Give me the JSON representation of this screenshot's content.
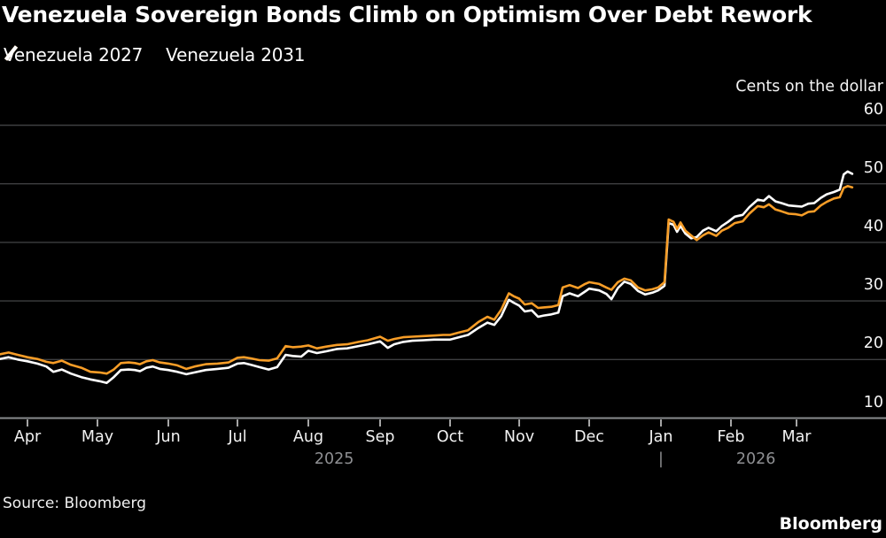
{
  "header": {
    "title": "Venezuela Sovereign Bonds Climb on Optimism Over Debt Rework"
  },
  "legend": {
    "items": [
      {
        "label": "Venezuela 2027",
        "color": "#f79d27"
      },
      {
        "label": "Venezuela 2031",
        "color": "#ffffff"
      }
    ]
  },
  "footer": {
    "source": "Source: Bloomberg",
    "logo": "Bloomberg"
  },
  "chart_data": {
    "type": "line",
    "title": "Venezuela Sovereign Bonds Climb on Optimism Over Debt Rework",
    "y_label": "Cents on the dollar",
    "y_ticks": [
      60,
      50,
      40,
      30,
      20,
      10
    ],
    "ylim": [
      10,
      60
    ],
    "grid": "horizontal",
    "legend_position": "top-left",
    "x_unit": "t = months after the Apr 2025 tick (Apr 2025 through Mar 2026)",
    "x_tick_labels": [
      "Apr",
      "May",
      "Jun",
      "Jul",
      "Aug",
      "Sep",
      "Oct",
      "Nov",
      "Dec",
      "Jan",
      "Feb",
      "Mar"
    ],
    "x_years": [
      {
        "label": "2025",
        "t": 4.36
      },
      {
        "label": "|",
        "t": 9.0
      },
      {
        "label": "2026",
        "t": 10.38
      }
    ],
    "series": [
      {
        "name": "Venezuela 2031",
        "color": "#ffffff",
        "points": [
          [
            -0.39,
            20.1
          ],
          [
            -0.27,
            20.4
          ],
          [
            -0.14,
            20.0
          ],
          [
            0,
            19.7
          ],
          [
            0.14,
            19.3
          ],
          [
            0.27,
            18.8
          ],
          [
            0.37,
            17.9
          ],
          [
            0.49,
            18.3
          ],
          [
            0.62,
            17.6
          ],
          [
            0.77,
            17.0
          ],
          [
            0.9,
            16.6
          ],
          [
            1.03,
            16.3
          ],
          [
            1.13,
            16.0
          ],
          [
            1.23,
            17.0
          ],
          [
            1.33,
            18.2
          ],
          [
            1.44,
            18.3
          ],
          [
            1.53,
            18.2
          ],
          [
            1.6,
            18.0
          ],
          [
            1.69,
            18.6
          ],
          [
            1.78,
            18.8
          ],
          [
            1.88,
            18.4
          ],
          [
            2,
            18.2
          ],
          [
            2.13,
            17.9
          ],
          [
            2.26,
            17.5
          ],
          [
            2.38,
            17.8
          ],
          [
            2.54,
            18.2
          ],
          [
            2.71,
            18.4
          ],
          [
            2.87,
            18.6
          ],
          [
            3,
            19.3
          ],
          [
            3.09,
            19.4
          ],
          [
            3.19,
            19.1
          ],
          [
            3.31,
            18.7
          ],
          [
            3.44,
            18.3
          ],
          [
            3.56,
            18.7
          ],
          [
            3.68,
            20.8
          ],
          [
            3.78,
            20.6
          ],
          [
            3.9,
            20.5
          ],
          [
            4,
            21.5
          ],
          [
            4.12,
            21.1
          ],
          [
            4.25,
            21.4
          ],
          [
            4.4,
            21.8
          ],
          [
            4.54,
            21.9
          ],
          [
            4.7,
            22.3
          ],
          [
            4.83,
            22.6
          ],
          [
            5,
            23.1
          ],
          [
            5.11,
            22.0
          ],
          [
            5.2,
            22.6
          ],
          [
            5.33,
            23.0
          ],
          [
            5.46,
            23.2
          ],
          [
            5.62,
            23.3
          ],
          [
            5.77,
            23.4
          ],
          [
            5.9,
            23.4
          ],
          [
            6,
            23.4
          ],
          [
            6.13,
            23.8
          ],
          [
            6.26,
            24.2
          ],
          [
            6.41,
            25.4
          ],
          [
            6.54,
            26.3
          ],
          [
            6.64,
            25.9
          ],
          [
            6.74,
            27.4
          ],
          [
            6.85,
            30.2
          ],
          [
            6.92,
            29.7
          ],
          [
            7,
            29.2
          ],
          [
            7.08,
            28.2
          ],
          [
            7.18,
            28.4
          ],
          [
            7.27,
            27.3
          ],
          [
            7.35,
            27.5
          ],
          [
            7.46,
            27.7
          ],
          [
            7.56,
            28.0
          ],
          [
            7.62,
            30.8
          ],
          [
            7.72,
            31.3
          ],
          [
            7.84,
            30.8
          ],
          [
            7.94,
            31.6
          ],
          [
            8,
            32.1
          ],
          [
            8.14,
            31.8
          ],
          [
            8.24,
            31.2
          ],
          [
            8.31,
            30.3
          ],
          [
            8.4,
            32.2
          ],
          [
            8.49,
            33.3
          ],
          [
            8.58,
            32.9
          ],
          [
            8.68,
            31.7
          ],
          [
            8.78,
            31.1
          ],
          [
            8.88,
            31.4
          ],
          [
            8.96,
            31.8
          ],
          [
            9.03,
            32.4
          ],
          [
            9.05,
            32.6
          ],
          [
            9.11,
            43.3
          ],
          [
            9.18,
            43.0
          ],
          [
            9.23,
            41.8
          ],
          [
            9.28,
            42.8
          ],
          [
            9.35,
            41.5
          ],
          [
            9.43,
            40.7
          ],
          [
            9.51,
            40.9
          ],
          [
            9.6,
            42.0
          ],
          [
            9.68,
            42.5
          ],
          [
            9.79,
            41.9
          ],
          [
            9.87,
            42.8
          ],
          [
            9.96,
            43.5
          ],
          [
            10.06,
            44.4
          ],
          [
            10.18,
            44.7
          ],
          [
            10.28,
            46.0
          ],
          [
            10.41,
            47.3
          ],
          [
            10.5,
            47.1
          ],
          [
            10.58,
            47.9
          ],
          [
            10.68,
            47.0
          ],
          [
            10.77,
            46.7
          ],
          [
            10.88,
            46.3
          ],
          [
            10.99,
            46.2
          ],
          [
            11.08,
            46.1
          ],
          [
            11.18,
            46.6
          ],
          [
            11.27,
            46.7
          ],
          [
            11.37,
            47.6
          ],
          [
            11.46,
            48.2
          ],
          [
            11.57,
            48.6
          ],
          [
            11.66,
            49.0
          ],
          [
            11.72,
            51.6
          ],
          [
            11.78,
            52.1
          ],
          [
            11.85,
            51.7
          ]
        ]
      },
      {
        "name": "Venezuela 2027",
        "color": "#f79d27",
        "points": [
          [
            -0.39,
            20.9
          ],
          [
            -0.27,
            21.2
          ],
          [
            -0.14,
            20.8
          ],
          [
            0,
            20.4
          ],
          [
            0.14,
            20.1
          ],
          [
            0.27,
            19.6
          ],
          [
            0.37,
            19.4
          ],
          [
            0.49,
            19.8
          ],
          [
            0.62,
            19.1
          ],
          [
            0.77,
            18.6
          ],
          [
            0.9,
            17.9
          ],
          [
            1.03,
            17.8
          ],
          [
            1.13,
            17.6
          ],
          [
            1.23,
            18.3
          ],
          [
            1.33,
            19.4
          ],
          [
            1.44,
            19.5
          ],
          [
            1.53,
            19.4
          ],
          [
            1.6,
            19.2
          ],
          [
            1.69,
            19.7
          ],
          [
            1.78,
            19.9
          ],
          [
            1.88,
            19.5
          ],
          [
            2,
            19.3
          ],
          [
            2.13,
            19.0
          ],
          [
            2.26,
            18.4
          ],
          [
            2.38,
            18.8
          ],
          [
            2.54,
            19.2
          ],
          [
            2.71,
            19.3
          ],
          [
            2.87,
            19.5
          ],
          [
            3,
            20.3
          ],
          [
            3.09,
            20.4
          ],
          [
            3.19,
            20.2
          ],
          [
            3.31,
            19.9
          ],
          [
            3.44,
            19.8
          ],
          [
            3.56,
            20.2
          ],
          [
            3.68,
            22.3
          ],
          [
            3.78,
            22.1
          ],
          [
            3.9,
            22.2
          ],
          [
            4,
            22.4
          ],
          [
            4.12,
            21.9
          ],
          [
            4.25,
            22.2
          ],
          [
            4.4,
            22.5
          ],
          [
            4.54,
            22.6
          ],
          [
            4.7,
            23.0
          ],
          [
            4.83,
            23.3
          ],
          [
            5,
            23.9
          ],
          [
            5.11,
            23.2
          ],
          [
            5.2,
            23.5
          ],
          [
            5.33,
            23.8
          ],
          [
            5.46,
            23.9
          ],
          [
            5.62,
            24.0
          ],
          [
            5.77,
            24.1
          ],
          [
            5.9,
            24.2
          ],
          [
            6,
            24.2
          ],
          [
            6.13,
            24.6
          ],
          [
            6.26,
            25.0
          ],
          [
            6.41,
            26.4
          ],
          [
            6.54,
            27.3
          ],
          [
            6.64,
            26.8
          ],
          [
            6.74,
            28.5
          ],
          [
            6.85,
            31.3
          ],
          [
            6.92,
            30.8
          ],
          [
            7,
            30.4
          ],
          [
            7.08,
            29.4
          ],
          [
            7.18,
            29.6
          ],
          [
            7.27,
            28.8
          ],
          [
            7.35,
            28.9
          ],
          [
            7.46,
            29.0
          ],
          [
            7.56,
            29.3
          ],
          [
            7.62,
            32.3
          ],
          [
            7.72,
            32.7
          ],
          [
            7.84,
            32.2
          ],
          [
            7.94,
            32.9
          ],
          [
            8,
            33.2
          ],
          [
            8.14,
            32.9
          ],
          [
            8.24,
            32.3
          ],
          [
            8.31,
            31.9
          ],
          [
            8.4,
            33.2
          ],
          [
            8.49,
            33.8
          ],
          [
            8.58,
            33.5
          ],
          [
            8.68,
            32.3
          ],
          [
            8.78,
            31.8
          ],
          [
            8.88,
            32.0
          ],
          [
            8.96,
            32.3
          ],
          [
            9.03,
            33.0
          ],
          [
            9.05,
            33.2
          ],
          [
            9.11,
            43.9
          ],
          [
            9.18,
            43.5
          ],
          [
            9.23,
            42.3
          ],
          [
            9.28,
            43.4
          ],
          [
            9.35,
            42.0
          ],
          [
            9.43,
            41.2
          ],
          [
            9.51,
            40.4
          ],
          [
            9.6,
            41.2
          ],
          [
            9.68,
            41.7
          ],
          [
            9.79,
            41.1
          ],
          [
            9.87,
            42.0
          ],
          [
            9.96,
            42.5
          ],
          [
            10.06,
            43.3
          ],
          [
            10.18,
            43.6
          ],
          [
            10.28,
            44.9
          ],
          [
            10.41,
            46.2
          ],
          [
            10.5,
            46.0
          ],
          [
            10.58,
            46.5
          ],
          [
            10.68,
            45.6
          ],
          [
            10.77,
            45.3
          ],
          [
            10.88,
            44.9
          ],
          [
            10.99,
            44.8
          ],
          [
            11.08,
            44.6
          ],
          [
            11.18,
            45.2
          ],
          [
            11.27,
            45.3
          ],
          [
            11.37,
            46.3
          ],
          [
            11.46,
            46.9
          ],
          [
            11.57,
            47.5
          ],
          [
            11.66,
            47.7
          ],
          [
            11.72,
            49.3
          ],
          [
            11.78,
            49.6
          ],
          [
            11.85,
            49.4
          ]
        ]
      }
    ]
  }
}
